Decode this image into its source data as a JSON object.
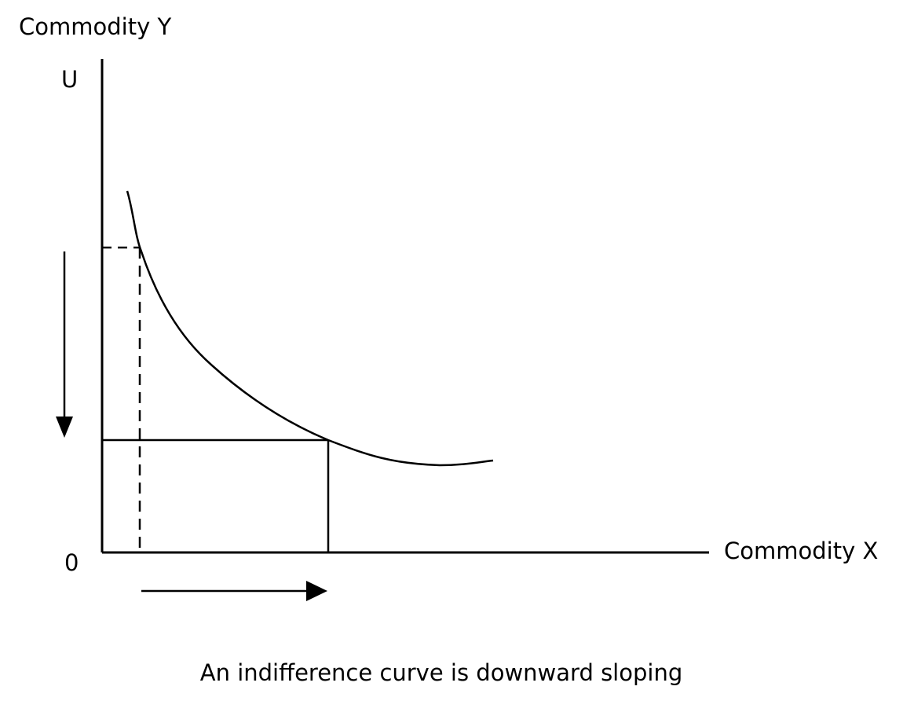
{
  "diagram": {
    "y_axis_label": "Commodity Y",
    "curve_label": "U",
    "origin_label": "0",
    "x_axis_label": "Commodity X",
    "caption": "An indifference curve is downward sloping"
  }
}
